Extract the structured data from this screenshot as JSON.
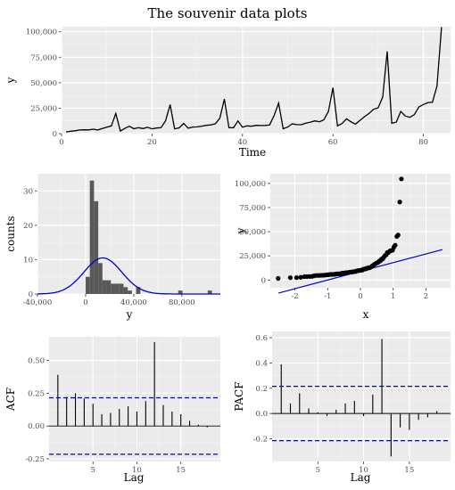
{
  "title": "The souvenir data plots",
  "colors": {
    "panel": "#ebebeb",
    "grid_major": "#ffffff",
    "grid_minor": "#f5f5f5",
    "line": "#000000",
    "normal": "#0000cd",
    "bars": "#595959",
    "bounds": "#0000cd"
  },
  "chart_data": [
    {
      "type": "line",
      "title": "",
      "xlabel": "Time",
      "ylabel": "y",
      "xlim": [
        0,
        86
      ],
      "ylim": [
        0,
        105000
      ],
      "xticks": [
        0,
        20,
        40,
        60,
        80
      ],
      "yticks": [
        0,
        25000,
        50000,
        75000,
        100000
      ],
      "ytick_labels": [
        "0",
        "25,000",
        "50,000",
        "75,000",
        "100,000"
      ],
      "grid": true,
      "x": [
        1,
        2,
        3,
        4,
        5,
        6,
        7,
        8,
        9,
        10,
        11,
        12,
        13,
        14,
        15,
        16,
        17,
        18,
        19,
        20,
        21,
        22,
        23,
        24,
        25,
        26,
        27,
        28,
        29,
        30,
        31,
        32,
        33,
        34,
        35,
        36,
        37,
        38,
        39,
        40,
        41,
        42,
        43,
        44,
        45,
        46,
        47,
        48,
        49,
        50,
        51,
        52,
        53,
        54,
        55,
        56,
        57,
        58,
        59,
        60,
        61,
        62,
        63,
        64,
        65,
        66,
        67,
        68,
        69,
        70,
        71,
        72,
        73,
        74,
        75,
        76,
        77,
        78,
        79,
        80,
        81,
        82,
        83,
        84
      ],
      "values": [
        1665,
        2398,
        2841,
        3547,
        3753,
        3715,
        4350,
        3566,
        5022,
        6423,
        7600,
        19756,
        2499,
        5198,
        7225,
        4806,
        5900,
        4951,
        6179,
        4752,
        5496,
        5835,
        12600,
        28542,
        4717,
        5702,
        9957,
        5304,
        6492,
        6630,
        7349,
        8176,
        8573,
        9690,
        15152,
        34061,
        5921,
        5814,
        12421,
        6370,
        7609,
        7224,
        8121,
        7979,
        8093,
        8476,
        17914,
        30114,
        4826,
        6470,
        9638,
        8821,
        8722,
        10209,
        11276,
        12552,
        11637,
        13606,
        21822,
        45060,
        7615,
        9849,
        14558,
        11587,
        9333,
        13082,
        16733,
        19889,
        23933,
        25391,
        36024,
        80721,
        10243,
        11266,
        21827,
        17357,
        15997,
        18601,
        26155,
        28586,
        30506,
        30821,
        46634,
        104661
      ]
    },
    {
      "type": "bar",
      "title": "",
      "xlabel": "y",
      "ylabel": "counts",
      "xlim": [
        -40000,
        112000
      ],
      "ylim": [
        0,
        35
      ],
      "xticks": [
        -40000,
        0,
        40000,
        80000
      ],
      "xtick_labels": [
        "-40,000",
        "0",
        "40,000",
        "80,000"
      ],
      "yticks": [
        0,
        10,
        20,
        30
      ],
      "bin_width": 3500,
      "bin_centers": [
        1750,
        5250,
        8750,
        12250,
        15750,
        19250,
        22750,
        26250,
        29750,
        33250,
        36750,
        43750,
        78750,
        103250
      ],
      "values": [
        5,
        33,
        27,
        9,
        4,
        4,
        3,
        3,
        3,
        2,
        1,
        2,
        1,
        1
      ],
      "normal_curve": {
        "mean": 14315,
        "sd": 15748,
        "peak_count": 10.5
      },
      "grid": true
    },
    {
      "type": "scatter",
      "title": "",
      "xlabel": "x",
      "ylabel": "y",
      "xlim": [
        -2.75,
        2.75
      ],
      "ylim": [
        -8000,
        110000
      ],
      "xticks": [
        -2,
        -1,
        0,
        1,
        2
      ],
      "yticks": [
        0,
        25000,
        50000,
        75000,
        100000
      ],
      "ytick_labels": [
        "0",
        "25,000",
        "50,000",
        "75,000",
        "100,000"
      ],
      "points_x": [
        -2.51,
        -2.14,
        -1.95,
        -1.82,
        -1.71,
        -1.63,
        -1.55,
        -1.48,
        -1.42,
        -1.36,
        -1.3,
        -1.25,
        -1.2,
        -1.15,
        -1.11,
        -1.06,
        -1.02,
        -0.98,
        -0.94,
        -0.9,
        -0.86,
        -0.82,
        -0.79,
        -0.75,
        -0.72,
        -0.68,
        -0.65,
        -0.61,
        -0.58,
        -0.55,
        -0.52,
        -0.48,
        -0.45,
        -0.42,
        -0.39,
        -0.36,
        -0.33,
        -0.3,
        -0.27,
        -0.24,
        -0.21,
        -0.18,
        -0.15,
        -0.12,
        -0.09,
        -0.06,
        -0.03,
        0.0,
        0.03,
        0.06,
        0.09,
        0.12,
        0.15,
        0.18,
        0.21,
        0.24,
        0.27,
        0.3,
        0.33,
        0.36,
        0.39,
        0.42,
        0.45,
        0.48,
        0.52,
        0.55,
        0.58,
        0.61,
        0.65,
        0.68,
        0.72,
        0.75,
        0.79,
        0.82,
        0.86,
        0.9,
        0.94,
        0.98,
        1.02,
        1.06,
        1.11,
        1.15,
        1.2,
        1.25,
        1.3,
        1.36,
        1.42,
        1.48,
        1.55,
        1.63,
        1.71,
        1.82,
        1.95,
        2.14,
        2.51
      ],
      "points_y": [
        1665,
        2398,
        2499,
        2841,
        3547,
        3566,
        3715,
        3753,
        4350,
        4717,
        4752,
        4806,
        4826,
        4951,
        5022,
        5198,
        5304,
        5496,
        5702,
        5814,
        5835,
        5900,
        5921,
        6179,
        6370,
        6423,
        6470,
        6492,
        6630,
        7224,
        7225,
        7349,
        7600,
        7609,
        7615,
        7979,
        8093,
        8121,
        8176,
        8476,
        8573,
        8722,
        8821,
        9333,
        9638,
        9690,
        9849,
        9957,
        10209,
        10243,
        11266,
        11276,
        11587,
        11637,
        12421,
        12552,
        12600,
        13082,
        13606,
        14558,
        15152,
        15997,
        16733,
        17357,
        17914,
        18601,
        19756,
        19889,
        21822,
        21827,
        23933,
        25391,
        26155,
        28542,
        28586,
        30114,
        30506,
        30821,
        34061,
        36024,
        45060,
        46634,
        80721,
        104661
      ],
      "reference_line": {
        "intercept": 9000,
        "slope": 9000
      },
      "grid": true
    },
    {
      "type": "bar",
      "title": "",
      "xlabel": "Lag",
      "ylabel": "ACF",
      "xlim": [
        0,
        19.5
      ],
      "ylim": [
        -0.27,
        0.68
      ],
      "xticks": [
        5,
        10,
        15
      ],
      "yticks": [
        -0.25,
        0,
        0.25,
        0.5
      ],
      "ytick_labels": [
        "-0.25",
        "0.00",
        "0.25",
        "0.50"
      ],
      "lags": [
        1,
        2,
        3,
        4,
        5,
        6,
        7,
        8,
        9,
        10,
        11,
        12,
        13,
        14,
        15,
        16,
        17,
        18
      ],
      "values": [
        0.39,
        0.22,
        0.25,
        0.21,
        0.17,
        0.09,
        0.1,
        0.13,
        0.15,
        0.11,
        0.19,
        0.64,
        0.16,
        0.11,
        0.09,
        0.04,
        0.01,
        -0.01
      ],
      "bounds": [
        0.215,
        -0.215
      ],
      "grid": true
    },
    {
      "type": "bar",
      "title": "",
      "xlabel": "Lag",
      "ylabel": "PACF",
      "xlim": [
        0,
        19.5
      ],
      "ylim": [
        -0.38,
        0.65
      ],
      "xticks": [
        5,
        10,
        15
      ],
      "yticks": [
        -0.2,
        0,
        0.2,
        0.4,
        0.6
      ],
      "ytick_labels": [
        "-0.2",
        "0.0",
        "0.2",
        "0.4",
        "0.6"
      ],
      "lags": [
        1,
        2,
        3,
        4,
        5,
        6,
        7,
        8,
        9,
        10,
        11,
        12,
        13,
        14,
        15,
        16,
        17,
        18
      ],
      "values": [
        0.39,
        0.08,
        0.16,
        0.04,
        0.01,
        -0.02,
        0.03,
        0.08,
        0.1,
        -0.02,
        0.15,
        0.59,
        -0.34,
        -0.11,
        -0.13,
        -0.05,
        -0.03,
        0.02
      ],
      "bounds": [
        0.215,
        -0.215
      ],
      "grid": true
    }
  ]
}
